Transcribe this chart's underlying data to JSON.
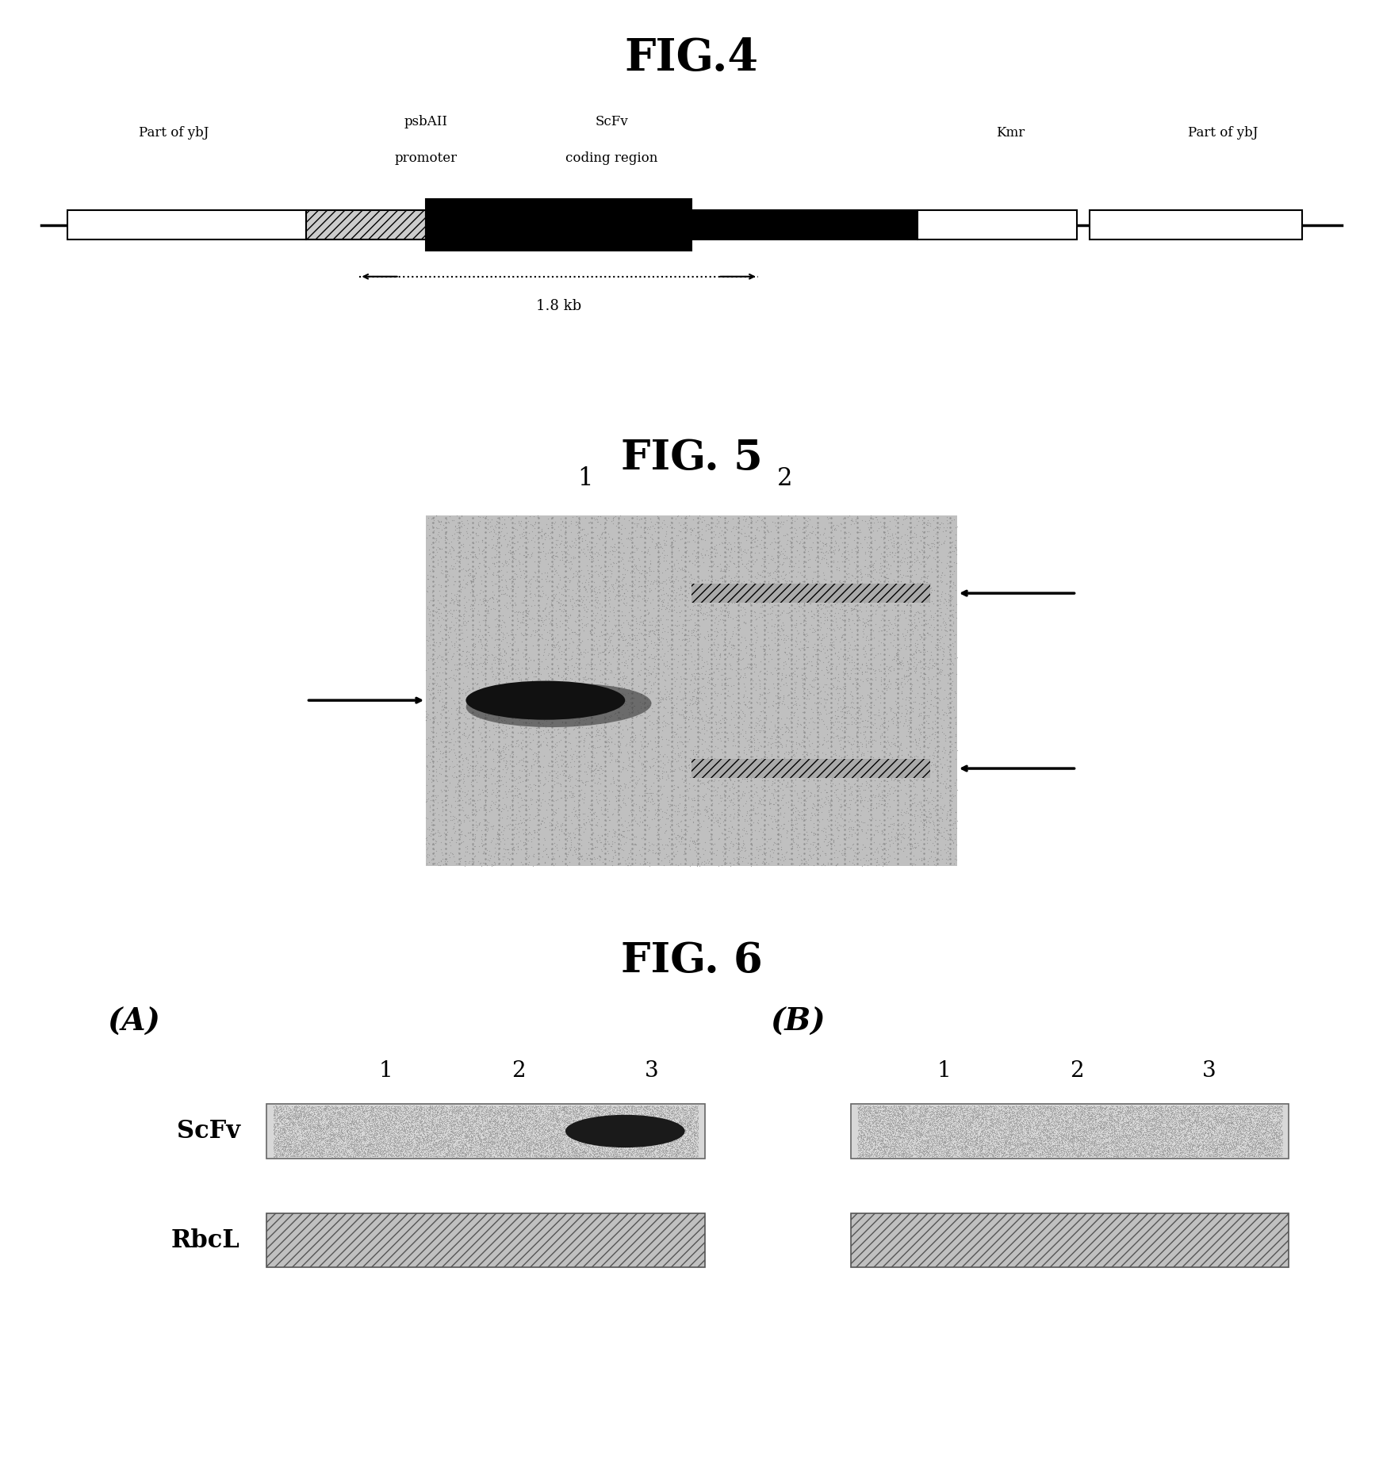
{
  "fig4_title": "FIG.4",
  "fig5_title": "FIG. 5",
  "fig6_title": "FIG. 6",
  "bg_color": "#ffffff",
  "label_partofybJ_left": "Part of ybJ",
  "label_psbAII": "psbAII\npromoter",
  "label_scfv": "ScFv\ncoding region",
  "label_Kmr": "Kmr",
  "label_partofybJ_right": "Part of ybJ",
  "label_1_8kb": "1.8 kb",
  "fig6_A": "(A)",
  "fig6_B": "(B)",
  "fig6_ScFv": "ScFv",
  "fig6_RbcL": "RbcL",
  "black": "#000000",
  "dark_gray": "#333333",
  "medium_gray": "#888888",
  "stipple_color": "#b8b8b8"
}
